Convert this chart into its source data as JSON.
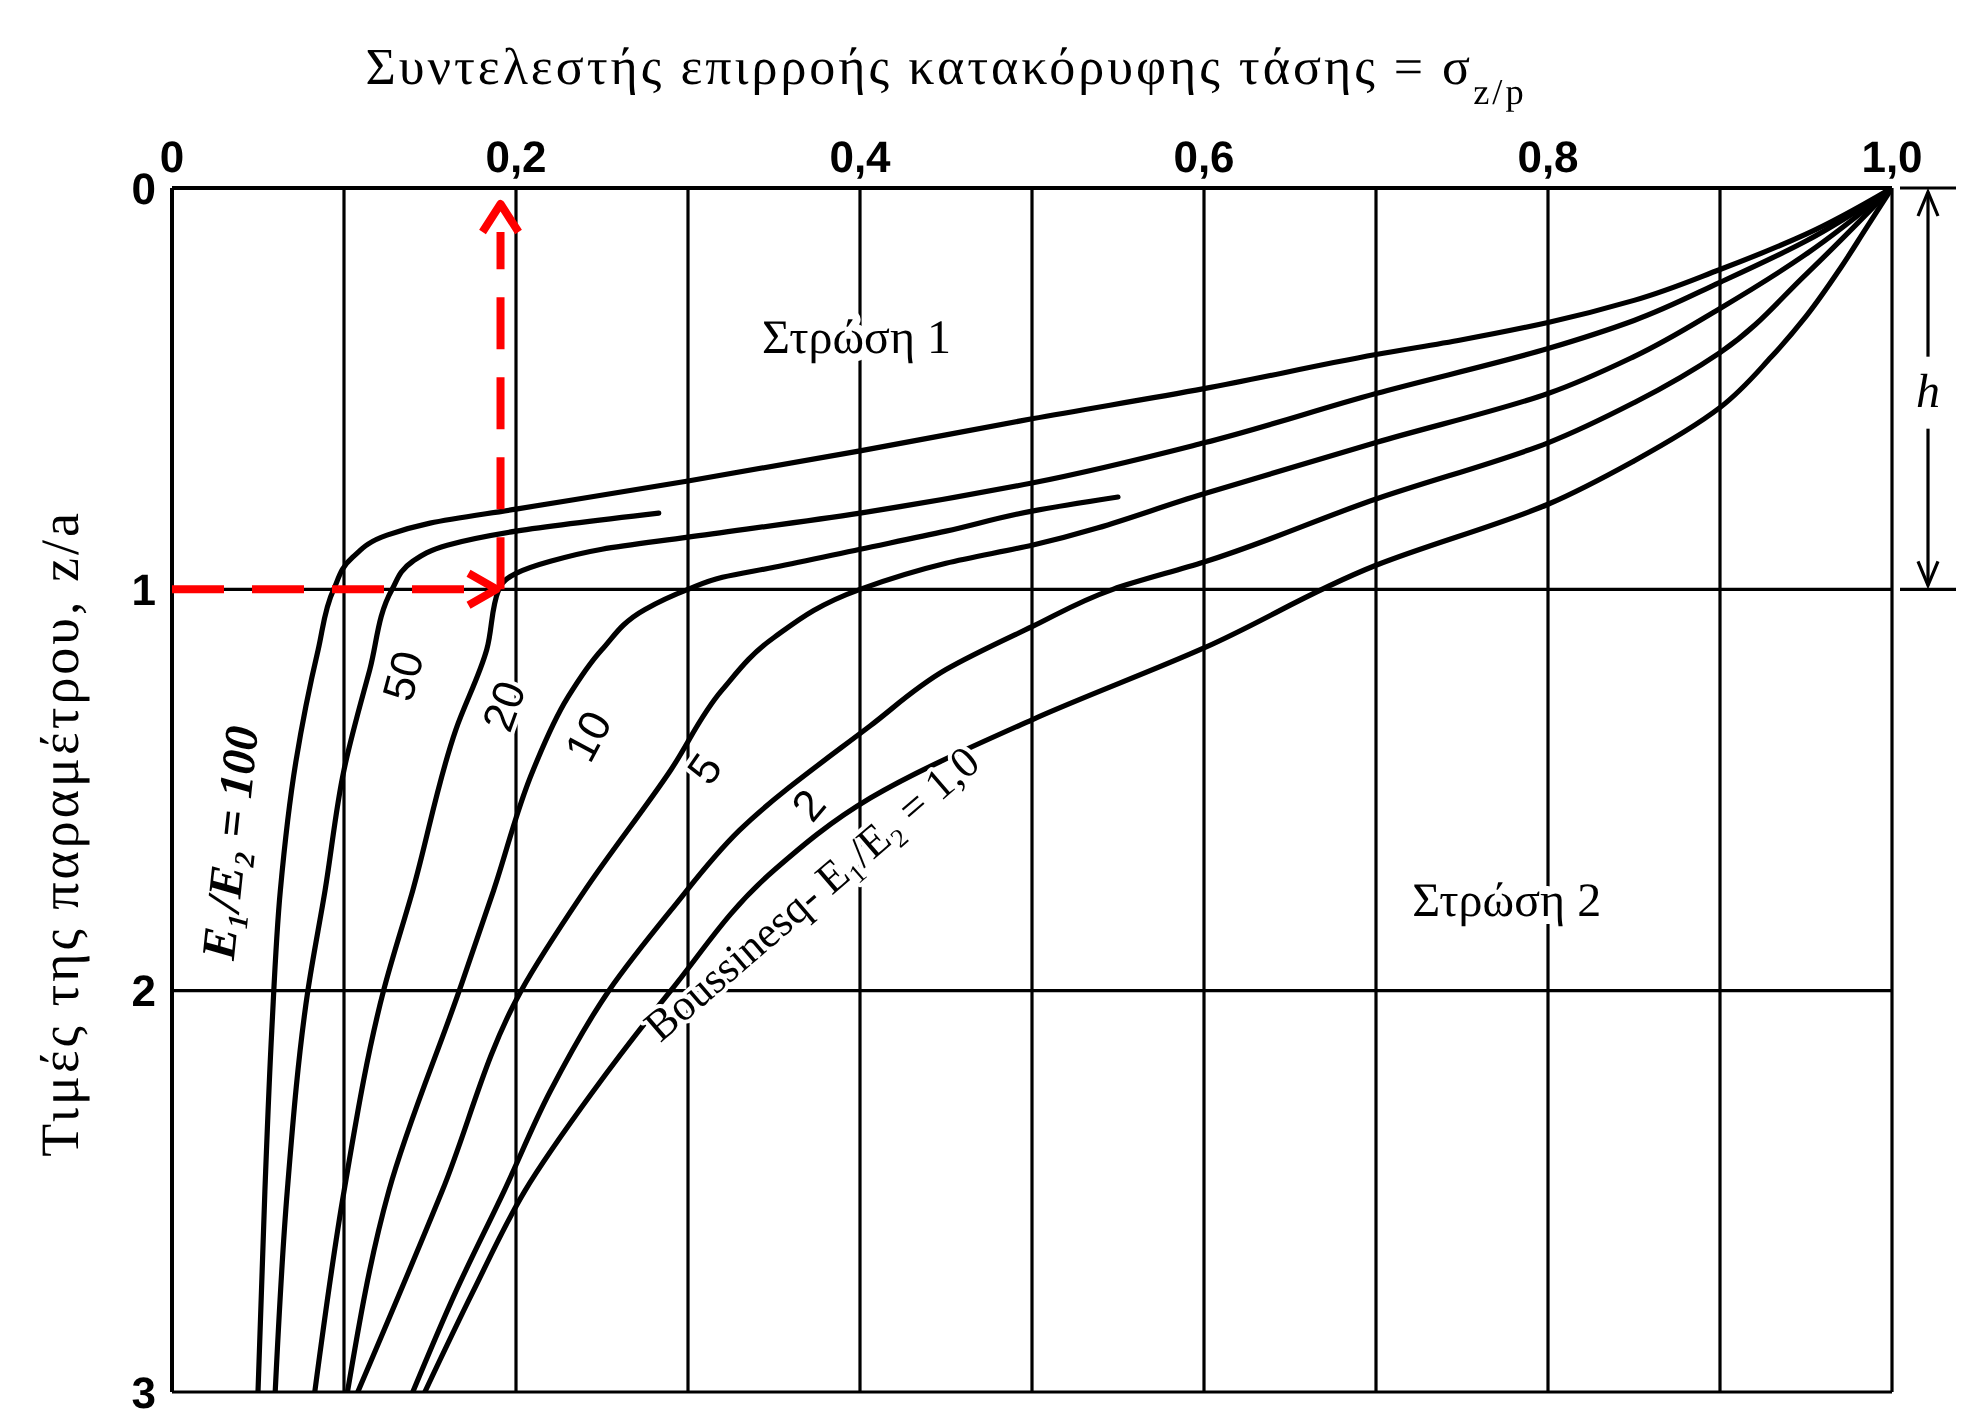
{
  "chart_data": {
    "type": "line",
    "xlabel": "Συντελεστής επιρροής κατακόρυφης τάσης = σ$_{z/p}$",
    "ylabel": "Τιμές της παραμέτρου, z/a",
    "xlim": [
      0,
      1
    ],
    "xticks": [
      0,
      {
        "value": 0.1,
        "label": null
      },
      {
        "value": 0.2,
        "label": "0,2"
      },
      {
        "value": 0.3,
        "label": null
      },
      {
        "value": 0.4,
        "label": "0,4"
      },
      {
        "value": 0.5,
        "label": null
      },
      {
        "value": 0.6,
        "label": "0,6"
      },
      {
        "value": 0.7,
        "label": null
      },
      {
        "value": 0.8,
        "label": "0,8"
      },
      {
        "value": 0.9,
        "label": null
      },
      {
        "value": 1,
        "label": "1,0"
      }
    ],
    "ylim": [
      3,
      0
    ],
    "yticks": [
      0,
      1,
      2,
      3
    ],
    "grid": true,
    "series": [
      {
        "name": "E₁/E₂ = 100",
        "color": "#000000",
        "x": [
          1.0,
          0.95,
          0.9,
          0.85,
          0.8,
          0.75,
          0.7,
          0.6,
          0.5,
          0.4,
          0.3,
          0.2,
          0.15,
          0.125,
          0.105,
          0.094,
          0.085,
          0.072,
          0.063,
          0.058,
          0.054,
          0.05
        ],
        "values": [
          0,
          0.115,
          0.203,
          0.28,
          0.335,
          0.378,
          0.415,
          0.5,
          0.575,
          0.655,
          0.73,
          0.8,
          0.835,
          0.865,
          0.92,
          1.0,
          1.15,
          1.43,
          1.75,
          2.1,
          2.5,
          3.0
        ]
      },
      {
        "name": "50",
        "color": "#000000",
        "x": [
          0.283,
          0.2,
          0.16,
          0.14,
          0.128,
          0.115,
          0.1,
          0.089,
          0.079,
          0.067,
          0.06
        ],
        "values": [
          0.81,
          0.855,
          0.89,
          0.93,
          1.0,
          1.2,
          1.45,
          1.75,
          2.0,
          2.5,
          3.0
        ]
      },
      {
        "name": "20",
        "color": "#000000",
        "x": [
          1.0,
          0.95,
          0.9,
          0.85,
          0.8,
          0.7,
          0.6,
          0.5,
          0.4,
          0.3,
          0.25,
          0.22,
          0.2,
          0.19,
          0.183,
          0.165,
          0.14,
          0.123,
          0.1,
          0.083
        ],
        "values": [
          0,
          0.132,
          0.235,
          0.33,
          0.4,
          0.512,
          0.635,
          0.735,
          0.81,
          0.87,
          0.9,
          0.93,
          0.96,
          1.0,
          1.15,
          1.35,
          1.75,
          2.0,
          2.5,
          3.0
        ]
      },
      {
        "name": "10",
        "color": "#000000",
        "x": [
          0.55,
          0.5,
          0.45,
          0.4,
          0.35,
          0.32,
          0.3,
          0.275,
          0.25,
          0.23,
          0.21,
          0.187,
          0.167,
          0.126,
          0.102
        ],
        "values": [
          0.77,
          0.805,
          0.855,
          0.9,
          0.945,
          0.97,
          1.0,
          1.05,
          1.15,
          1.27,
          1.45,
          1.75,
          2.0,
          2.5,
          3.0
        ]
      },
      {
        "name": "5",
        "color": "#000000",
        "x": [
          1.0,
          0.95,
          0.9,
          0.85,
          0.8,
          0.7,
          0.6,
          0.5,
          0.45,
          0.4,
          0.35,
          0.32,
          0.29,
          0.24,
          0.203,
          0.157,
          0.108
        ],
        "values": [
          0,
          0.165,
          0.3,
          0.42,
          0.512,
          0.634,
          0.762,
          0.89,
          0.935,
          1.0,
          1.12,
          1.25,
          1.45,
          1.75,
          2.0,
          2.5,
          3.0
        ]
      },
      {
        "name": "2",
        "color": "#000000",
        "x": [
          1.0,
          0.95,
          0.9,
          0.85,
          0.8,
          0.7,
          0.6,
          0.547,
          0.5,
          0.45,
          0.406,
          0.33,
          0.29,
          0.254,
          0.22,
          0.193,
          0.165,
          0.14
        ],
        "values": [
          0,
          0.215,
          0.41,
          0.535,
          0.635,
          0.775,
          0.932,
          1.0,
          1.093,
          1.2,
          1.34,
          1.6,
          1.8,
          2.0,
          2.25,
          2.5,
          2.75,
          3.0
        ]
      },
      {
        "name": "Boussinesq- E₁/E₂ = 1,0",
        "color": "#000000",
        "x": [
          1.0,
          0.985,
          0.97,
          0.95,
          0.93,
          0.9,
          0.85,
          0.8,
          0.7,
          0.6,
          0.5,
          0.406,
          0.35,
          0.29,
          0.245,
          0.205,
          0.175,
          0.147
        ],
        "values": [
          0,
          0.1,
          0.2,
          0.32,
          0.42,
          0.547,
          0.68,
          0.788,
          0.94,
          1.146,
          1.325,
          1.52,
          1.7,
          2.0,
          2.25,
          2.5,
          2.75,
          3.0
        ]
      }
    ],
    "annotations": [
      "Στρώση 1",
      "Στρώση 2",
      "h"
    ]
  }
}
